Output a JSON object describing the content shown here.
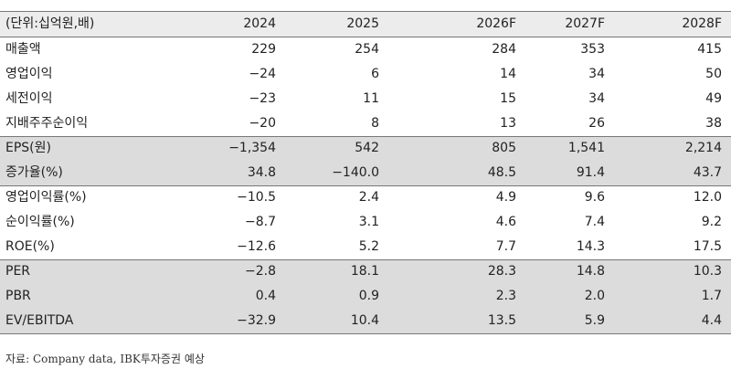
{
  "table": {
    "header": [
      "(단위:십억원,배)",
      "2024",
      "2025",
      "2026F",
      "2027F",
      "2028F"
    ],
    "rows": [
      [
        "매출액",
        "229",
        "254",
        "284",
        "353",
        "415"
      ],
      [
        "영업이익",
        "−24",
        "6",
        "14",
        "34",
        "50"
      ],
      [
        "세전이익",
        "−23",
        "11",
        "15",
        "34",
        "49"
      ],
      [
        "지배주주순이익",
        "−20",
        "8",
        "13",
        "26",
        "38"
      ],
      [
        "EPS(원)",
        "−1,354",
        "542",
        "805",
        "1,541",
        "2,214"
      ],
      [
        "증가율(%)",
        "34.8",
        "−140.0",
        "48.5",
        "91.4",
        "43.7"
      ],
      [
        "영업이익률(%)",
        "−10.5",
        "2.4",
        "4.9",
        "9.6",
        "12.0"
      ],
      [
        "순이익률(%)",
        "−8.7",
        "3.1",
        "4.6",
        "7.4",
        "9.2"
      ],
      [
        "ROE(%)",
        "−12.6",
        "5.2",
        "7.7",
        "14.3",
        "17.5"
      ],
      [
        "PER",
        "−2.8",
        "18.1",
        "28.3",
        "14.8",
        "10.3"
      ],
      [
        "PBR",
        "0.4",
        "0.9",
        "2.3",
        "2.0",
        "1.7"
      ],
      [
        "EV/EBITDA",
        "−32.9",
        "10.4",
        "13.5",
        "5.9",
        "4.4"
      ]
    ]
  },
  "source": "자료: Company data, IBK투자증권 예상"
}
